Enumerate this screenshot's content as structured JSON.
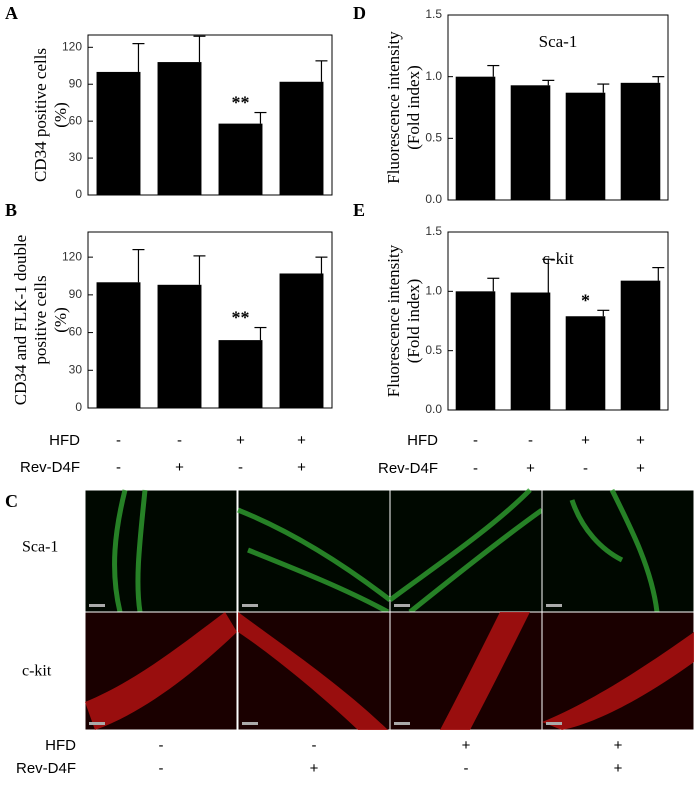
{
  "chart_data": [
    {
      "type": "bar",
      "panel": "A",
      "ylabel": [
        "CD34 positive cells",
        "(%)"
      ],
      "values": [
        100,
        108,
        58,
        92
      ],
      "errors": [
        23,
        21,
        9,
        17
      ],
      "significance": [
        null,
        null,
        "**",
        null
      ],
      "color": "#000000",
      "ylim": [
        0,
        130
      ],
      "yticks": [
        0,
        30,
        60,
        90,
        120
      ]
    },
    {
      "type": "bar",
      "panel": "B",
      "ylabel": [
        "CD34 and FLK-1 double",
        "positive cells",
        "(%)"
      ],
      "values": [
        100,
        98,
        54,
        107
      ],
      "errors": [
        26,
        23,
        10,
        13
      ],
      "significance": [
        null,
        null,
        "**",
        null
      ],
      "color": "#000000",
      "ylim": [
        0,
        140
      ],
      "yticks": [
        0,
        30,
        60,
        90,
        120
      ]
    },
    {
      "type": "bar",
      "panel": "D",
      "title": "Sca-1",
      "ylabel": [
        "Fluorescence intensity",
        "(Fold index)"
      ],
      "values": [
        1.0,
        0.93,
        0.87,
        0.95
      ],
      "errors": [
        0.09,
        0.04,
        0.07,
        0.05
      ],
      "significance": [
        null,
        null,
        null,
        null
      ],
      "color": "#000000",
      "ylim": [
        0,
        1.5
      ],
      "yticks": [
        {
          "value": 0,
          "label": "0.0"
        },
        {
          "value": 0.5,
          "label": "0.5"
        },
        {
          "value": 1,
          "label": "1.0"
        },
        {
          "value": 1.5,
          "label": "1.5"
        }
      ]
    },
    {
      "type": "bar",
      "panel": "E",
      "title": "c-kit",
      "ylabel": [
        "Fluorescence intensity",
        "(Fold index)"
      ],
      "values": [
        1.0,
        0.99,
        0.79,
        1.09
      ],
      "errors": [
        0.11,
        0.28,
        0.05,
        0.11
      ],
      "significance": [
        null,
        null,
        "*",
        null
      ],
      "color": "#000000",
      "ylim": [
        0,
        1.5
      ],
      "yticks": [
        {
          "value": 0,
          "label": "0.0"
        },
        {
          "value": 0.5,
          "label": "0.5"
        },
        {
          "value": 1,
          "label": "1.0"
        },
        {
          "value": 1.5,
          "label": "1.5"
        }
      ]
    }
  ],
  "treatments_left": [
    {
      "label": "HFD",
      "marks": [
        "-",
        "-",
        "+",
        "+"
      ]
    },
    {
      "label": "Rev-D4F",
      "marks": [
        "-",
        "+",
        "-",
        "+"
      ]
    }
  ],
  "treatments_right": [
    {
      "label": "HFD",
      "marks": [
        "-",
        "-",
        "+",
        "+"
      ]
    },
    {
      "label": "Rev-D4F",
      "marks": [
        "-",
        "+",
        "-",
        "+"
      ]
    }
  ],
  "panel_c": {
    "label": "C",
    "rows": [
      "Sca-1",
      "c-kit"
    ]
  },
  "treatments_bottom": [
    {
      "label": "HFD",
      "marks": [
        "-",
        "-",
        "+",
        "+"
      ]
    },
    {
      "label": "Rev-D4F",
      "marks": [
        "-",
        "+",
        "-",
        "+"
      ]
    }
  ]
}
